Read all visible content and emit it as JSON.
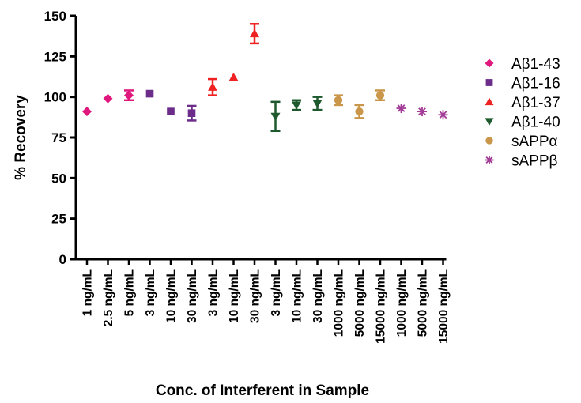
{
  "chart_data": {
    "type": "scatter",
    "title": "",
    "xlabel": "Conc. of Interferent in Sample",
    "ylabel": "% Recovery",
    "ylim": [
      0,
      150
    ],
    "yticks": [
      0,
      25,
      50,
      75,
      100,
      125,
      150
    ],
    "categories": [
      "1 ng/mL",
      "2.5 ng/mL",
      "5 ng/mL",
      "3 ng/mL",
      "10 ng/mL",
      "30 ng/mL",
      "3 ng/mL",
      "10 ng/mL",
      "30 ng/mL",
      "3 ng/mL",
      "10 ng/mL",
      "30 ng/mL",
      "1000 ng/mL",
      "5000 ng/mL",
      "15000 ng/mL",
      "1000 ng/mL",
      "5000 ng/mL",
      "15000 ng/mL"
    ],
    "grid": false,
    "legend_position": "right",
    "series": [
      {
        "name": "Aβ1-43",
        "marker": "diamond",
        "color": "#e0187d",
        "points": [
          {
            "x": "1 ng/mL",
            "y": 91,
            "err": 0
          },
          {
            "x": "2.5 ng/mL",
            "y": 99,
            "err": 0
          },
          {
            "x": "5 ng/mL",
            "y": 101,
            "err": 3
          }
        ]
      },
      {
        "name": "Aβ1-16",
        "marker": "square",
        "color": "#6b2c8a",
        "points": [
          {
            "x": "3 ng/mL",
            "y": 102,
            "err": 0
          },
          {
            "x": "10 ng/mL",
            "y": 91,
            "err": 0
          },
          {
            "x": "30 ng/mL",
            "y": 90,
            "err": 4.5
          }
        ]
      },
      {
        "name": "Aβ1-37",
        "marker": "triangle-up",
        "color": "#ee2222",
        "points": [
          {
            "x": "3 ng/mL",
            "y": 106,
            "err": 5
          },
          {
            "x": "10 ng/mL",
            "y": 112,
            "err": 0
          },
          {
            "x": "30 ng/mL",
            "y": 139,
            "err": 6
          }
        ]
      },
      {
        "name": "Aβ1-40",
        "marker": "triangle-down",
        "color": "#1e5a2e",
        "points": [
          {
            "x": "3 ng/mL",
            "y": 88,
            "err": 9
          },
          {
            "x": "10 ng/mL",
            "y": 95,
            "err": 3
          },
          {
            "x": "30 ng/mL",
            "y": 96,
            "err": 4
          }
        ]
      },
      {
        "name": "sAPPα",
        "marker": "circle",
        "color": "#c9964a",
        "points": [
          {
            "x": "1000 ng/mL",
            "y": 98,
            "err": 3
          },
          {
            "x": "5000 ng/mL",
            "y": 91,
            "err": 4
          },
          {
            "x": "15000 ng/mL",
            "y": 101,
            "err": 3
          }
        ]
      },
      {
        "name": "sAPPβ",
        "marker": "asterisk",
        "color": "#a23a96",
        "points": [
          {
            "x": "1000 ng/mL",
            "y": 93,
            "err": 0
          },
          {
            "x": "5000 ng/mL",
            "y": 91,
            "err": 0
          },
          {
            "x": "15000 ng/mL",
            "y": 89,
            "err": 0
          }
        ]
      }
    ]
  }
}
